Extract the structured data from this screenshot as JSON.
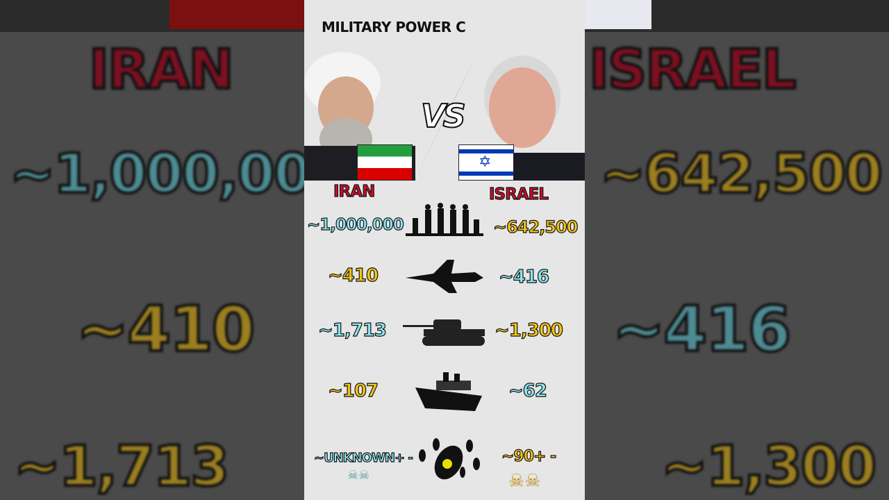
{
  "title": "MILITARY POWER C",
  "vs_label": "VS",
  "left": {
    "country": "IRAN",
    "personnel": "~1,000,000",
    "aircraft": "~410",
    "tanks": "~1,713",
    "naval": "~107",
    "nuclear": "~UNKNOWN+ -"
  },
  "right": {
    "country": "ISRAEL",
    "personnel": "~642,500",
    "aircraft": "~416",
    "tanks": "~1,300",
    "naval": "~62",
    "nuclear": "~90+ -"
  },
  "colors": {
    "cyan": "#8ee6f0",
    "yellow": "#f5c518",
    "red": "#c8102e",
    "background": "#e6e6e6"
  },
  "icons": [
    "soldiers-icon",
    "fighter-jet-icon",
    "tank-icon",
    "ship-icon",
    "nuclear-bombs-icon",
    "skull-icon"
  ]
}
